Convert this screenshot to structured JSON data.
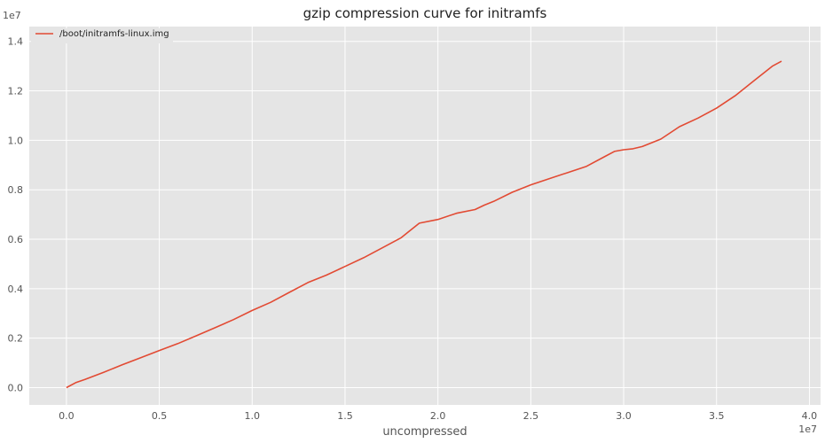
{
  "chart_data": {
    "type": "line",
    "title": "gzip compression curve for initramfs",
    "xlabel": "uncompressed",
    "ylabel": "",
    "x_offset_label": "1e7",
    "y_offset_label": "1e7",
    "xlim": [
      -0.2,
      4.06
    ],
    "ylim": [
      -0.07,
      1.46
    ],
    "x_ticks": [
      0.0,
      0.5,
      1.0,
      1.5,
      2.0,
      2.5,
      3.0,
      3.5,
      4.0
    ],
    "x_tick_labels": [
      "0.0",
      "0.5",
      "1.0",
      "1.5",
      "2.0",
      "2.5",
      "3.0",
      "3.5",
      "4.0"
    ],
    "y_ticks": [
      0.0,
      0.2,
      0.4,
      0.6,
      0.8,
      1.0,
      1.2,
      1.4
    ],
    "y_tick_labels": [
      "0.0",
      "0.2",
      "0.4",
      "0.6",
      "0.8",
      "1.0",
      "1.2",
      "1.4"
    ],
    "grid": true,
    "legend_position": "top-left",
    "colors": {
      "series": "#e24a33",
      "plot_bg": "#e5e5e5",
      "grid": "#ffffff"
    },
    "series": [
      {
        "name": "/boot/initramfs-linux.img",
        "x": [
          0.0,
          0.05,
          0.1,
          0.2,
          0.3,
          0.4,
          0.5,
          0.6,
          0.7,
          0.8,
          0.9,
          1.0,
          1.1,
          1.2,
          1.3,
          1.4,
          1.5,
          1.6,
          1.7,
          1.8,
          1.85,
          1.9,
          2.0,
          2.1,
          2.2,
          2.25,
          2.3,
          2.4,
          2.5,
          2.6,
          2.7,
          2.8,
          2.9,
          2.95,
          3.0,
          3.05,
          3.1,
          3.2,
          3.3,
          3.4,
          3.5,
          3.6,
          3.7,
          3.8,
          3.85
        ],
        "y": [
          0.0,
          0.02,
          0.033,
          0.062,
          0.092,
          0.121,
          0.15,
          0.178,
          0.21,
          0.242,
          0.275,
          0.312,
          0.345,
          0.385,
          0.425,
          0.455,
          0.49,
          0.525,
          0.565,
          0.605,
          0.635,
          0.665,
          0.68,
          0.705,
          0.72,
          0.738,
          0.753,
          0.79,
          0.82,
          0.845,
          0.87,
          0.895,
          0.935,
          0.955,
          0.962,
          0.966,
          0.975,
          1.005,
          1.055,
          1.09,
          1.13,
          1.18,
          1.24,
          1.3,
          1.32
        ]
      }
    ]
  }
}
